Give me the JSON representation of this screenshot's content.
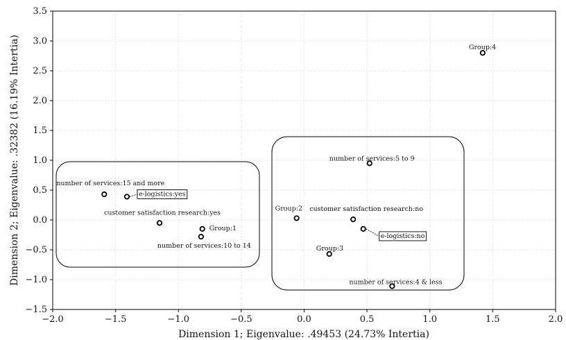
{
  "chart_data": {
    "type": "scatter",
    "title": "",
    "xlabel": "Dimension 1; Eigenvalue: .49453 (24.73% Intertia)",
    "ylabel": "Dimension 2; Eigenvalue: .32382 (16.19% Intertia)",
    "xlim": [
      -2.0,
      2.0
    ],
    "ylim": [
      -1.5,
      3.5
    ],
    "grid": true,
    "x_ticks": [
      "-2.0",
      "-1.5",
      "-1.0",
      "-0.5",
      "0.0",
      "0.5",
      "1.0",
      "1.5",
      "2.0"
    ],
    "y_ticks": [
      "-1.5",
      "-1.0",
      "-0.5",
      "0.0",
      "0.5",
      "1.0",
      "1.5",
      "2.0",
      "2.5",
      "3.0",
      "3.5"
    ],
    "points": [
      {
        "label": "Group:4",
        "x": 1.42,
        "y": 2.8,
        "boxed": false
      },
      {
        "label": "number of services:5 to 9",
        "x": 0.52,
        "y": 0.95,
        "boxed": false
      },
      {
        "label": "number of services:15 and more",
        "x": -1.59,
        "y": 0.43,
        "boxed": false
      },
      {
        "label": "e-logistics:yes",
        "x": -1.41,
        "y": 0.39,
        "boxed": true
      },
      {
        "label": "Group:2",
        "x": -0.06,
        "y": 0.03,
        "boxed": false
      },
      {
        "label": "customer satisfaction research:no",
        "x": 0.39,
        "y": 0.01,
        "boxed": false
      },
      {
        "label": "customer satisfaction research:yes",
        "x": -1.15,
        "y": -0.05,
        "boxed": false
      },
      {
        "label": "Group:1",
        "x": -0.81,
        "y": -0.15,
        "boxed": false
      },
      {
        "label": "e-logistics:no",
        "x": 0.47,
        "y": -0.15,
        "boxed": true
      },
      {
        "label": "number of services:10 to 14",
        "x": -0.82,
        "y": -0.28,
        "boxed": false
      },
      {
        "label": "Group:3",
        "x": 0.2,
        "y": -0.57,
        "boxed": false
      },
      {
        "label": "number of services:4 & less",
        "x": 0.7,
        "y": -1.11,
        "boxed": false
      }
    ],
    "cluster_outlines": 2
  }
}
